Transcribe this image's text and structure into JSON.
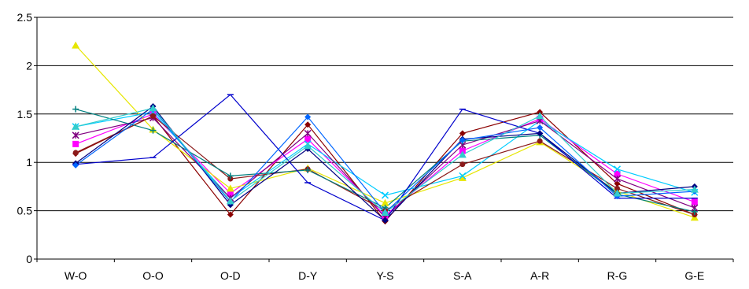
{
  "chart_data": {
    "type": "line",
    "categories": [
      "W-O",
      "O-O",
      "O-D",
      "D-Y",
      "Y-S",
      "S-A",
      "A-R",
      "R-G",
      "G-E"
    ],
    "ylim": [
      0,
      2.5
    ],
    "yticks": [
      "0",
      "0.5",
      "1",
      "1.5",
      "2",
      "2.5"
    ],
    "grid": true,
    "legend": "none",
    "series": [
      {
        "color": "#8B0000",
        "marker": "diamond",
        "values": [
          1.09,
          1.48,
          0.46,
          1.39,
          0.39,
          1.3,
          1.52,
          0.78,
          0.46
        ]
      },
      {
        "color": "#FF00FF",
        "marker": "square",
        "values": [
          1.19,
          1.5,
          0.68,
          1.24,
          0.45,
          1.12,
          1.45,
          0.88,
          0.59
        ]
      },
      {
        "color": "#E6E600",
        "marker": "triangle",
        "values": [
          2.21,
          1.34,
          0.73,
          0.94,
          0.58,
          0.84,
          1.21,
          0.7,
          0.43
        ]
      },
      {
        "color": "#00CCFF",
        "marker": "x",
        "values": [
          1.37,
          1.52,
          0.63,
          1.19,
          0.66,
          0.86,
          1.43,
          0.93,
          0.69
        ]
      },
      {
        "color": "#800080",
        "marker": "star",
        "values": [
          1.28,
          1.46,
          0.63,
          1.3,
          0.43,
          1.18,
          1.43,
          0.83,
          0.53
        ]
      },
      {
        "color": "#8B1A1A",
        "marker": "circle",
        "values": [
          1.1,
          1.48,
          0.83,
          0.93,
          0.5,
          0.98,
          1.22,
          0.73,
          0.46
        ]
      },
      {
        "color": "#008080",
        "marker": "plus",
        "values": [
          1.55,
          1.33,
          0.86,
          0.92,
          0.53,
          1.22,
          1.28,
          0.67,
          0.49
        ]
      },
      {
        "color": "#0000CC",
        "marker": "line",
        "values": [
          0.98,
          1.05,
          1.7,
          0.79,
          0.4,
          1.55,
          1.3,
          0.63,
          0.63
        ]
      },
      {
        "color": "#000080",
        "marker": "diamond",
        "values": [
          0.99,
          1.58,
          0.56,
          1.14,
          0.4,
          1.24,
          1.3,
          0.68,
          0.75
        ]
      },
      {
        "color": "#0066FF",
        "marker": "diamond",
        "values": [
          0.97,
          1.55,
          0.59,
          1.47,
          0.48,
          1.23,
          1.36,
          0.65,
          0.7
        ]
      },
      {
        "color": "#33CCCC",
        "marker": "triangle",
        "values": [
          1.37,
          1.56,
          0.6,
          1.17,
          0.48,
          1.08,
          1.48,
          0.68,
          0.72
        ]
      }
    ]
  }
}
